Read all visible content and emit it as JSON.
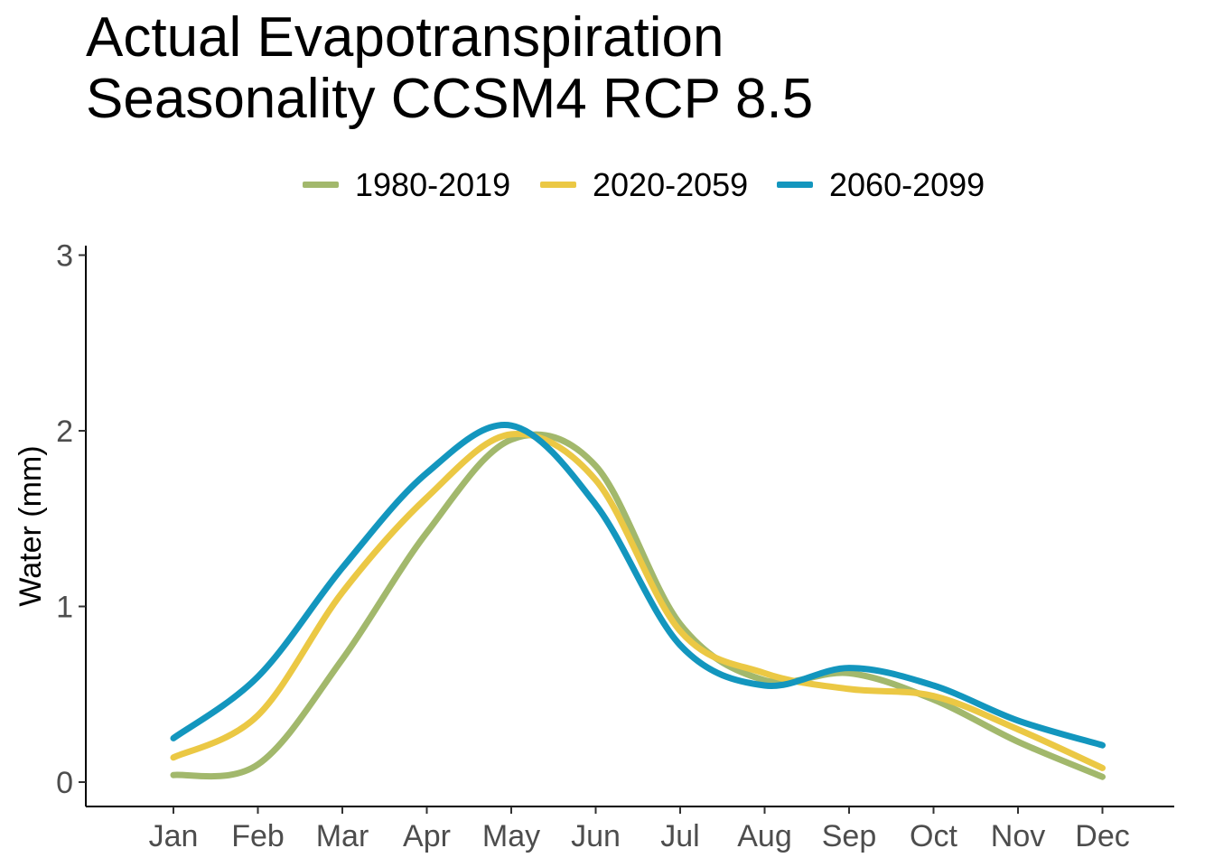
{
  "chart_data": {
    "type": "line",
    "title": "Actual Evapotranspiration\nSeasonality CCSM4 RCP 8.5",
    "xlabel": "",
    "ylabel": "Water (mm)",
    "ylim": [
      0,
      3
    ],
    "y_ticks": [
      "0",
      "1",
      "2",
      "3"
    ],
    "categories": [
      "Jan",
      "Feb",
      "Mar",
      "Apr",
      "May",
      "Jun",
      "Jul",
      "Aug",
      "Sep",
      "Oct",
      "Nov",
      "Dec"
    ],
    "grid": false,
    "legend_position": "top",
    "series": [
      {
        "name": "1980-2019",
        "color": "#a2b86c",
        "values": [
          0.04,
          0.1,
          0.7,
          1.42,
          1.95,
          1.8,
          0.9,
          0.58,
          0.62,
          0.47,
          0.23,
          0.03
        ]
      },
      {
        "name": "2020-2059",
        "color": "#ebc844",
        "values": [
          0.14,
          0.38,
          1.08,
          1.62,
          1.98,
          1.72,
          0.86,
          0.62,
          0.53,
          0.49,
          0.3,
          0.08
        ]
      },
      {
        "name": "2060-2099",
        "color": "#1396be",
        "values": [
          0.25,
          0.6,
          1.22,
          1.76,
          2.03,
          1.58,
          0.78,
          0.55,
          0.65,
          0.55,
          0.35,
          0.21
        ]
      }
    ]
  }
}
